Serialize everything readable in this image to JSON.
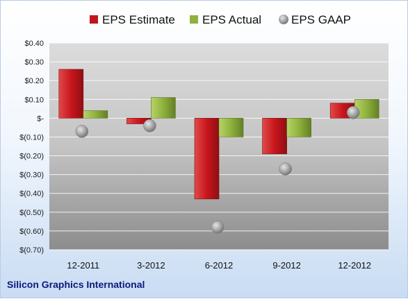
{
  "chart_data": {
    "type": "bar",
    "title": "",
    "categories": [
      "12-2011",
      "3-2012",
      "6-2012",
      "9-2012",
      "12-2012"
    ],
    "series": [
      {
        "name": "EPS Estimate",
        "values": [
          0.26,
          -0.03,
          -0.43,
          -0.19,
          0.08
        ],
        "color": "#c0161b",
        "kind": "bar"
      },
      {
        "name": "EPS Actual",
        "values": [
          0.04,
          0.11,
          -0.1,
          -0.1,
          0.1
        ],
        "color": "#8fb23c",
        "kind": "bar"
      },
      {
        "name": "EPS GAAP",
        "values": [
          -0.07,
          -0.04,
          -0.58,
          -0.27,
          0.03
        ],
        "color": "#a8a8a8",
        "kind": "marker"
      }
    ],
    "ylim": [
      -0.7,
      0.4
    ],
    "yticks": [
      0.4,
      0.3,
      0.2,
      0.1,
      0,
      -0.1,
      -0.2,
      -0.3,
      -0.4,
      -0.5,
      -0.6,
      -0.7
    ],
    "ytick_labels": [
      "$0.40",
      "$0.30",
      "$0.20",
      "$0.10",
      "$-",
      "$(0.10)",
      "$(0.20)",
      "$(0.30)",
      "$(0.40)",
      "$(0.50)",
      "$(0.60)",
      "$(0.70)"
    ],
    "grid": true,
    "legend_position": "top"
  },
  "footer": {
    "company": "Silicon Graphics International"
  }
}
